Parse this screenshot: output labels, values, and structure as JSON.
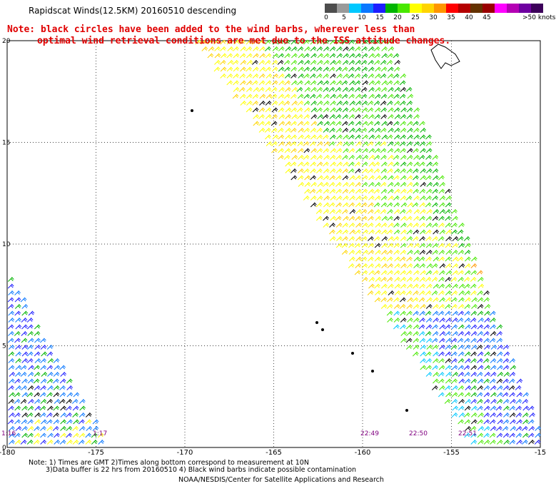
{
  "header": {
    "title": "Rapidscat Winds(12.5KM) 20160510 descending",
    "note_line1": "Note: black circles have been added to the wind barbs, wherever less than",
    "note_line2": "optimal wind retrieval conditions are met due to the ISS attitude changes."
  },
  "legend": {
    "colors": [
      "#4d4d4d",
      "#9a9a9a",
      "#00c8ff",
      "#0a78ff",
      "#1e1eff",
      "#00b400",
      "#48e800",
      "#ffff00",
      "#ffd400",
      "#ff9600",
      "#ff0000",
      "#b40000",
      "#643200",
      "#9a0000",
      "#ff00ff",
      "#b400b4",
      "#6e00a0",
      "#3c005a"
    ],
    "labels": [
      "0",
      "5",
      "10",
      "15",
      "20",
      "25",
      "30",
      "35",
      "40",
      "45",
      ">50 knots"
    ]
  },
  "axes": {
    "x_ticks": [
      "-180",
      "-175",
      "-170",
      "-165",
      "-160",
      "-155",
      "-15"
    ],
    "y_ticks": [
      "0",
      "5",
      "10",
      "15",
      "20"
    ],
    "x_range": [
      -180,
      -150
    ],
    "y_range": [
      0,
      20
    ]
  },
  "times": [
    "1:16",
    "1:17",
    "22:49",
    "22:50",
    "22:51"
  ],
  "time_color": "#800080",
  "footer": {
    "line1": "Note: 1) Times are GMT 2)Times along bottom correspond to measurement at 10N",
    "line2": "3)Data buffer is 22 hrs from 20160510 4) Black wind barbs indicate possible contamination",
    "line3": "NOAA/NESDIS/Center for Satellite Applications and Research"
  }
}
